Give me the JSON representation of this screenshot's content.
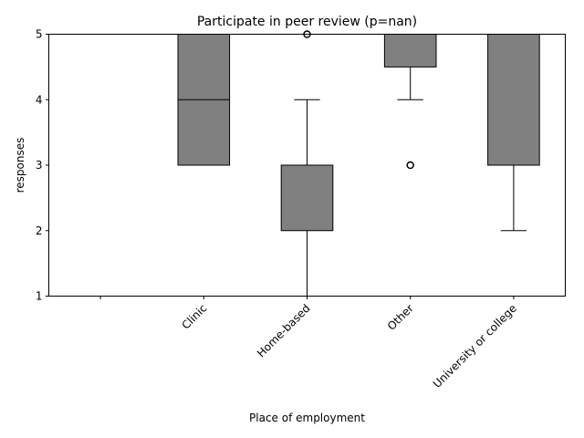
{
  "chart_data": {
    "type": "boxplot",
    "title": "Participate in peer review (p=nan)",
    "xlabel": "Place of employment",
    "ylabel": "responses",
    "ylim": [
      1,
      5
    ],
    "yticks": [
      "1",
      "2",
      "3",
      "4",
      "5"
    ],
    "grid": false,
    "box_color": "#808080",
    "categories": [
      "",
      "Clinic",
      "Home-based",
      "Other",
      "University or college"
    ],
    "boxes": [
      null,
      {
        "whislo": 3,
        "q1": 3,
        "med": 4,
        "q3": 5,
        "whishi": 5,
        "fliers": []
      },
      {
        "whislo": 1,
        "q1": 2,
        "med": 3,
        "q3": 3,
        "whishi": 4,
        "fliers": [
          5
        ]
      },
      {
        "whislo": 4,
        "q1": 4.5,
        "med": 5,
        "q3": 5,
        "whishi": 5,
        "fliers": [
          3
        ]
      },
      {
        "whislo": 2,
        "q1": 3,
        "med": 5,
        "q3": 5,
        "whishi": 5,
        "fliers": []
      }
    ]
  }
}
